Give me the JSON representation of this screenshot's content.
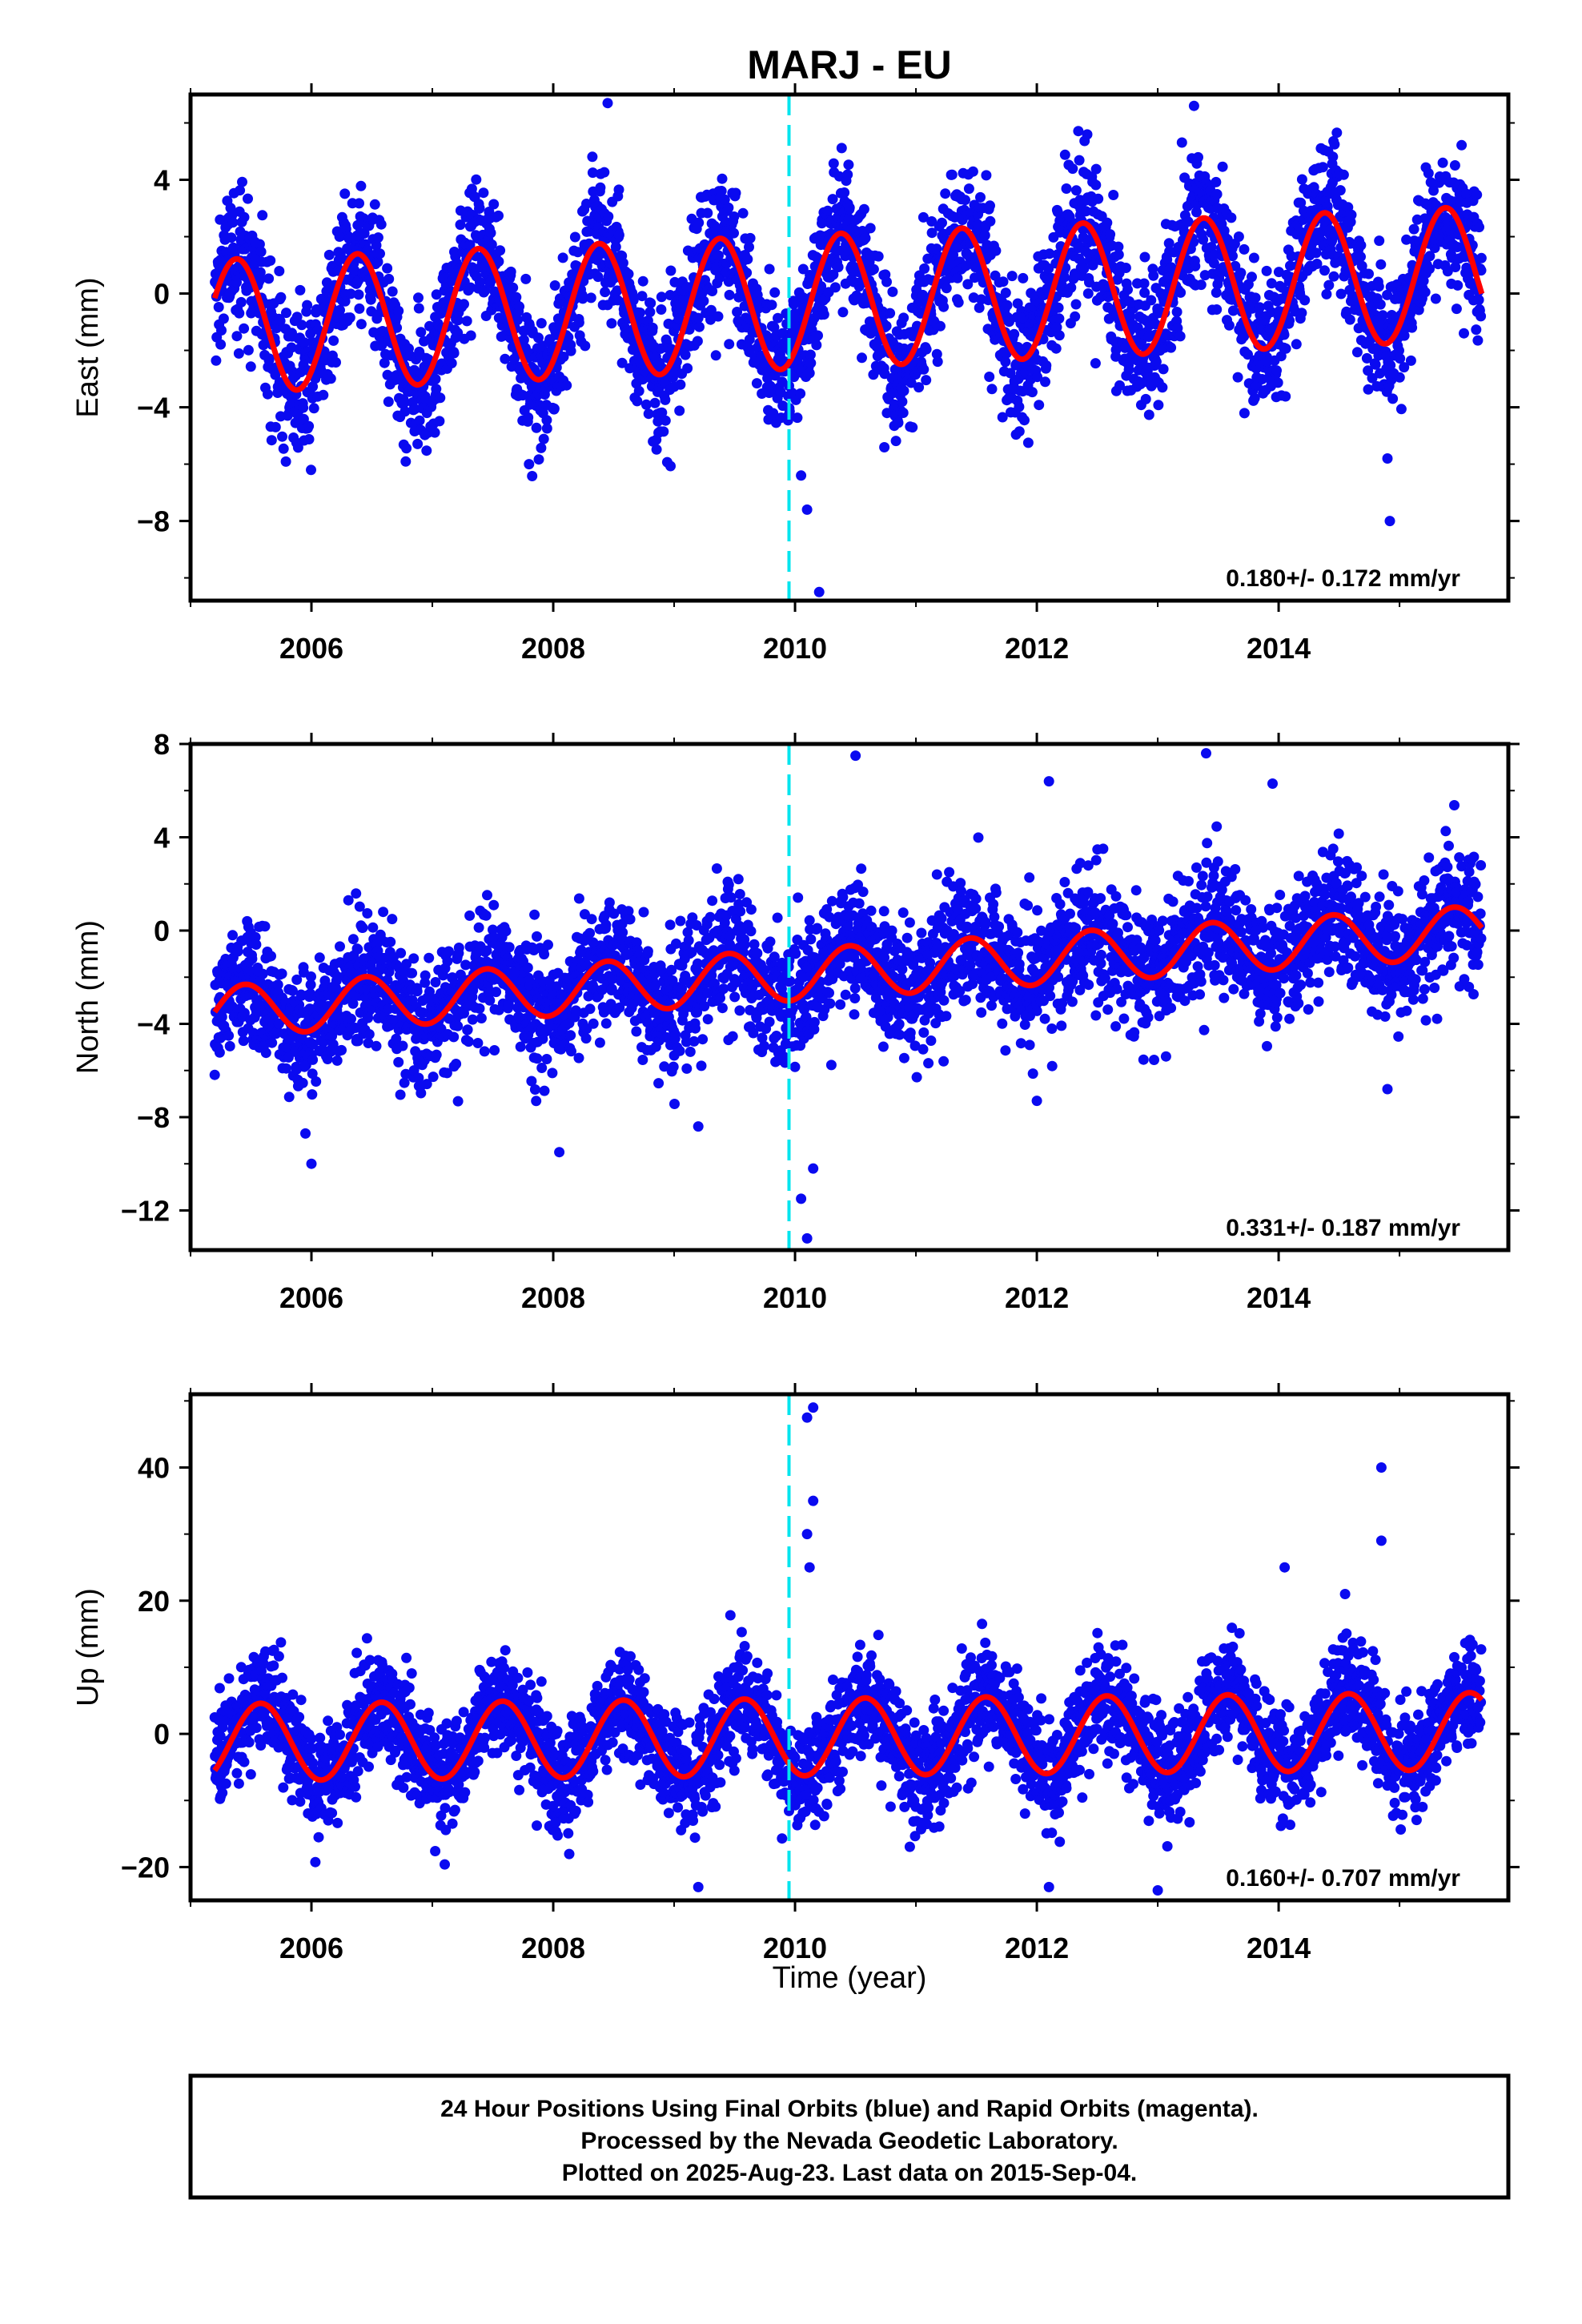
{
  "title": "MARJ - EU",
  "xlabel": "Time (year)",
  "colors": {
    "points": "#0a0af0",
    "model": "#ff0000",
    "marker": "#00e5ee",
    "frame": "#000000"
  },
  "footer": {
    "lines": [
      "24 Hour Positions Using Final Orbits (blue) and Rapid Orbits (magenta).",
      "Processed by the Nevada Geodetic Laboratory.",
      "Plotted on 2025-Aug-23. Last data on 2015-Sep-04."
    ]
  },
  "chart_data": [
    {
      "type": "scatter",
      "name": "east",
      "ylabel": "East (mm)",
      "rate_text": "0.180+/- 0.172 mm/yr",
      "xlim": [
        2005.0,
        2015.9
      ],
      "ylim": [
        -10.8,
        7.0
      ],
      "yticks": [
        4,
        0,
        -4,
        -8
      ],
      "ytick_labels": [
        "4",
        "0",
        "−4",
        "−8"
      ],
      "xticks": [
        2006,
        2008,
        2010,
        2012,
        2014
      ],
      "xtick_labels": [
        "2006",
        "2008",
        "2010",
        "2012",
        "2014"
      ],
      "marker_year": 2009.95,
      "data_start": 2005.2,
      "data_end": 2015.68,
      "model": {
        "offset": -0.3,
        "rate": 0.18,
        "amplitude": 2.35,
        "peak_phase": 0.38
      },
      "scatter_sd": 1.2,
      "outliers": [
        {
          "x": 2010.1,
          "y": -7.6
        },
        {
          "x": 2010.05,
          "y": -6.4
        },
        {
          "x": 2010.2,
          "y": -10.5
        },
        {
          "x": 2014.9,
          "y": -5.8
        },
        {
          "x": 2014.92,
          "y": -8.0
        },
        {
          "x": 2007.8,
          "y": -6.0
        },
        {
          "x": 2013.3,
          "y": 6.6
        },
        {
          "x": 2008.45,
          "y": 6.7
        }
      ]
    },
    {
      "type": "scatter",
      "name": "north",
      "ylabel": "North (mm)",
      "rate_text": "0.331+/- 0.187 mm/yr",
      "xlim": [
        2005.0,
        2015.9
      ],
      "ylim": [
        -13.7,
        8.0
      ],
      "yticks": [
        8,
        4,
        0,
        -4,
        -8,
        -12
      ],
      "ytick_labels": [
        "8",
        "4",
        "0",
        "−4",
        "−8",
        "−12"
      ],
      "xticks": [
        2006,
        2008,
        2010,
        2012,
        2014
      ],
      "xtick_labels": [
        "2006",
        "2008",
        "2010",
        "2012",
        "2014"
      ],
      "marker_year": 2009.95,
      "data_start": 2005.2,
      "data_end": 2015.68,
      "model": {
        "offset": -1.9,
        "rate": 0.331,
        "amplitude": 1.1,
        "peak_phase": 0.45
      },
      "scatter_sd": 1.35,
      "outliers": [
        {
          "x": 2010.1,
          "y": -13.2
        },
        {
          "x": 2010.05,
          "y": -11.5
        },
        {
          "x": 2010.15,
          "y": -10.2
        },
        {
          "x": 2006.0,
          "y": -10.0
        },
        {
          "x": 2008.05,
          "y": -9.5
        },
        {
          "x": 2005.95,
          "y": -8.7
        },
        {
          "x": 2009.2,
          "y": -8.4
        },
        {
          "x": 2014.9,
          "y": -6.8
        },
        {
          "x": 2012.0,
          "y": -7.3
        },
        {
          "x": 2010.5,
          "y": 7.5
        },
        {
          "x": 2013.4,
          "y": 7.6
        },
        {
          "x": 2013.95,
          "y": 6.3
        },
        {
          "x": 2012.1,
          "y": 6.4
        }
      ]
    },
    {
      "type": "scatter",
      "name": "up",
      "ylabel": "Up (mm)",
      "rate_text": "0.160+/- 0.707 mm/yr",
      "xlim": [
        2005.0,
        2015.9
      ],
      "ylim": [
        -25.0,
        51.0
      ],
      "yticks": [
        40,
        20,
        0,
        -20
      ],
      "ytick_labels": [
        "40",
        "20",
        "0",
        "−20"
      ],
      "xticks": [
        2006,
        2008,
        2010,
        2012,
        2014
      ],
      "xtick_labels": [
        "2006",
        "2008",
        "2010",
        "2012",
        "2014"
      ],
      "marker_year": 2009.95,
      "data_start": 2005.2,
      "data_end": 2015.68,
      "model": {
        "offset": -0.5,
        "rate": 0.16,
        "amplitude": 5.8,
        "peak_phase": 0.58
      },
      "scatter_sd": 4.0,
      "outliers": [
        {
          "x": 2010.15,
          "y": 49.0
        },
        {
          "x": 2010.1,
          "y": 47.5
        },
        {
          "x": 2010.15,
          "y": 35.0
        },
        {
          "x": 2010.1,
          "y": 30.0
        },
        {
          "x": 2010.12,
          "y": 25.0
        },
        {
          "x": 2014.85,
          "y": 40.0
        },
        {
          "x": 2014.85,
          "y": 29.0
        },
        {
          "x": 2014.05,
          "y": 25.0
        },
        {
          "x": 2014.55,
          "y": 21.0
        },
        {
          "x": 2009.2,
          "y": -23.0
        },
        {
          "x": 2012.1,
          "y": -23.0
        },
        {
          "x": 2013.0,
          "y": -23.5
        }
      ]
    }
  ]
}
